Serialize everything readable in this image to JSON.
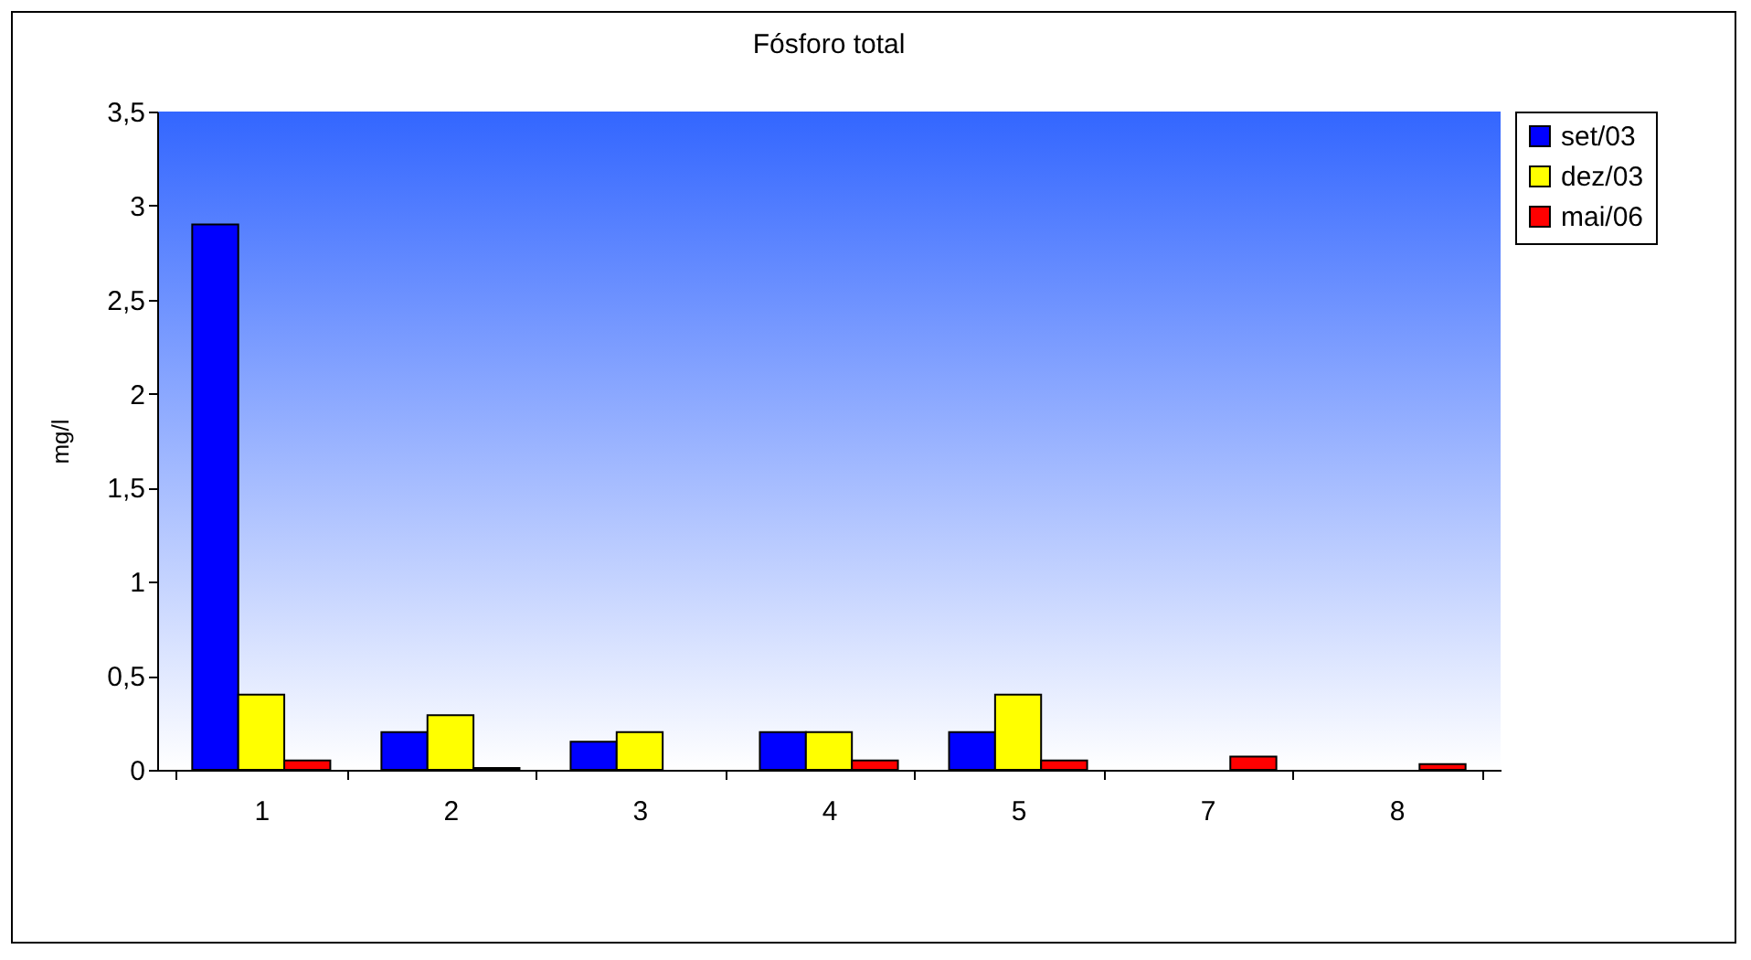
{
  "chart_data": {
    "type": "bar",
    "title": "Fósforo total",
    "ylabel": "mg/l",
    "categories": [
      "1",
      "2",
      "3",
      "4",
      "5",
      "7",
      "8"
    ],
    "series": [
      {
        "name": "set/03",
        "color": "#0000ff",
        "values": [
          2.9,
          0.2,
          0.15,
          0.2,
          0.2,
          null,
          null
        ]
      },
      {
        "name": "dez/03",
        "color": "#ffff00",
        "values": [
          0.4,
          0.29,
          0.2,
          0.2,
          0.4,
          null,
          null
        ]
      },
      {
        "name": "mai/06",
        "color": "#ff0000",
        "values": [
          0.05,
          0.01,
          null,
          0.05,
          0.05,
          0.07,
          0.03
        ]
      }
    ],
    "ylim": [
      0,
      3.5
    ],
    "yticks": [
      0,
      {
        "value": 0.5,
        "label": "0,5"
      },
      1,
      {
        "value": 1.5,
        "label": "1,5"
      },
      2,
      {
        "value": 2.5,
        "label": "2,5"
      },
      3,
      {
        "value": 3.5,
        "label": "3,5"
      }
    ],
    "grid": false,
    "legend": "top right"
  }
}
